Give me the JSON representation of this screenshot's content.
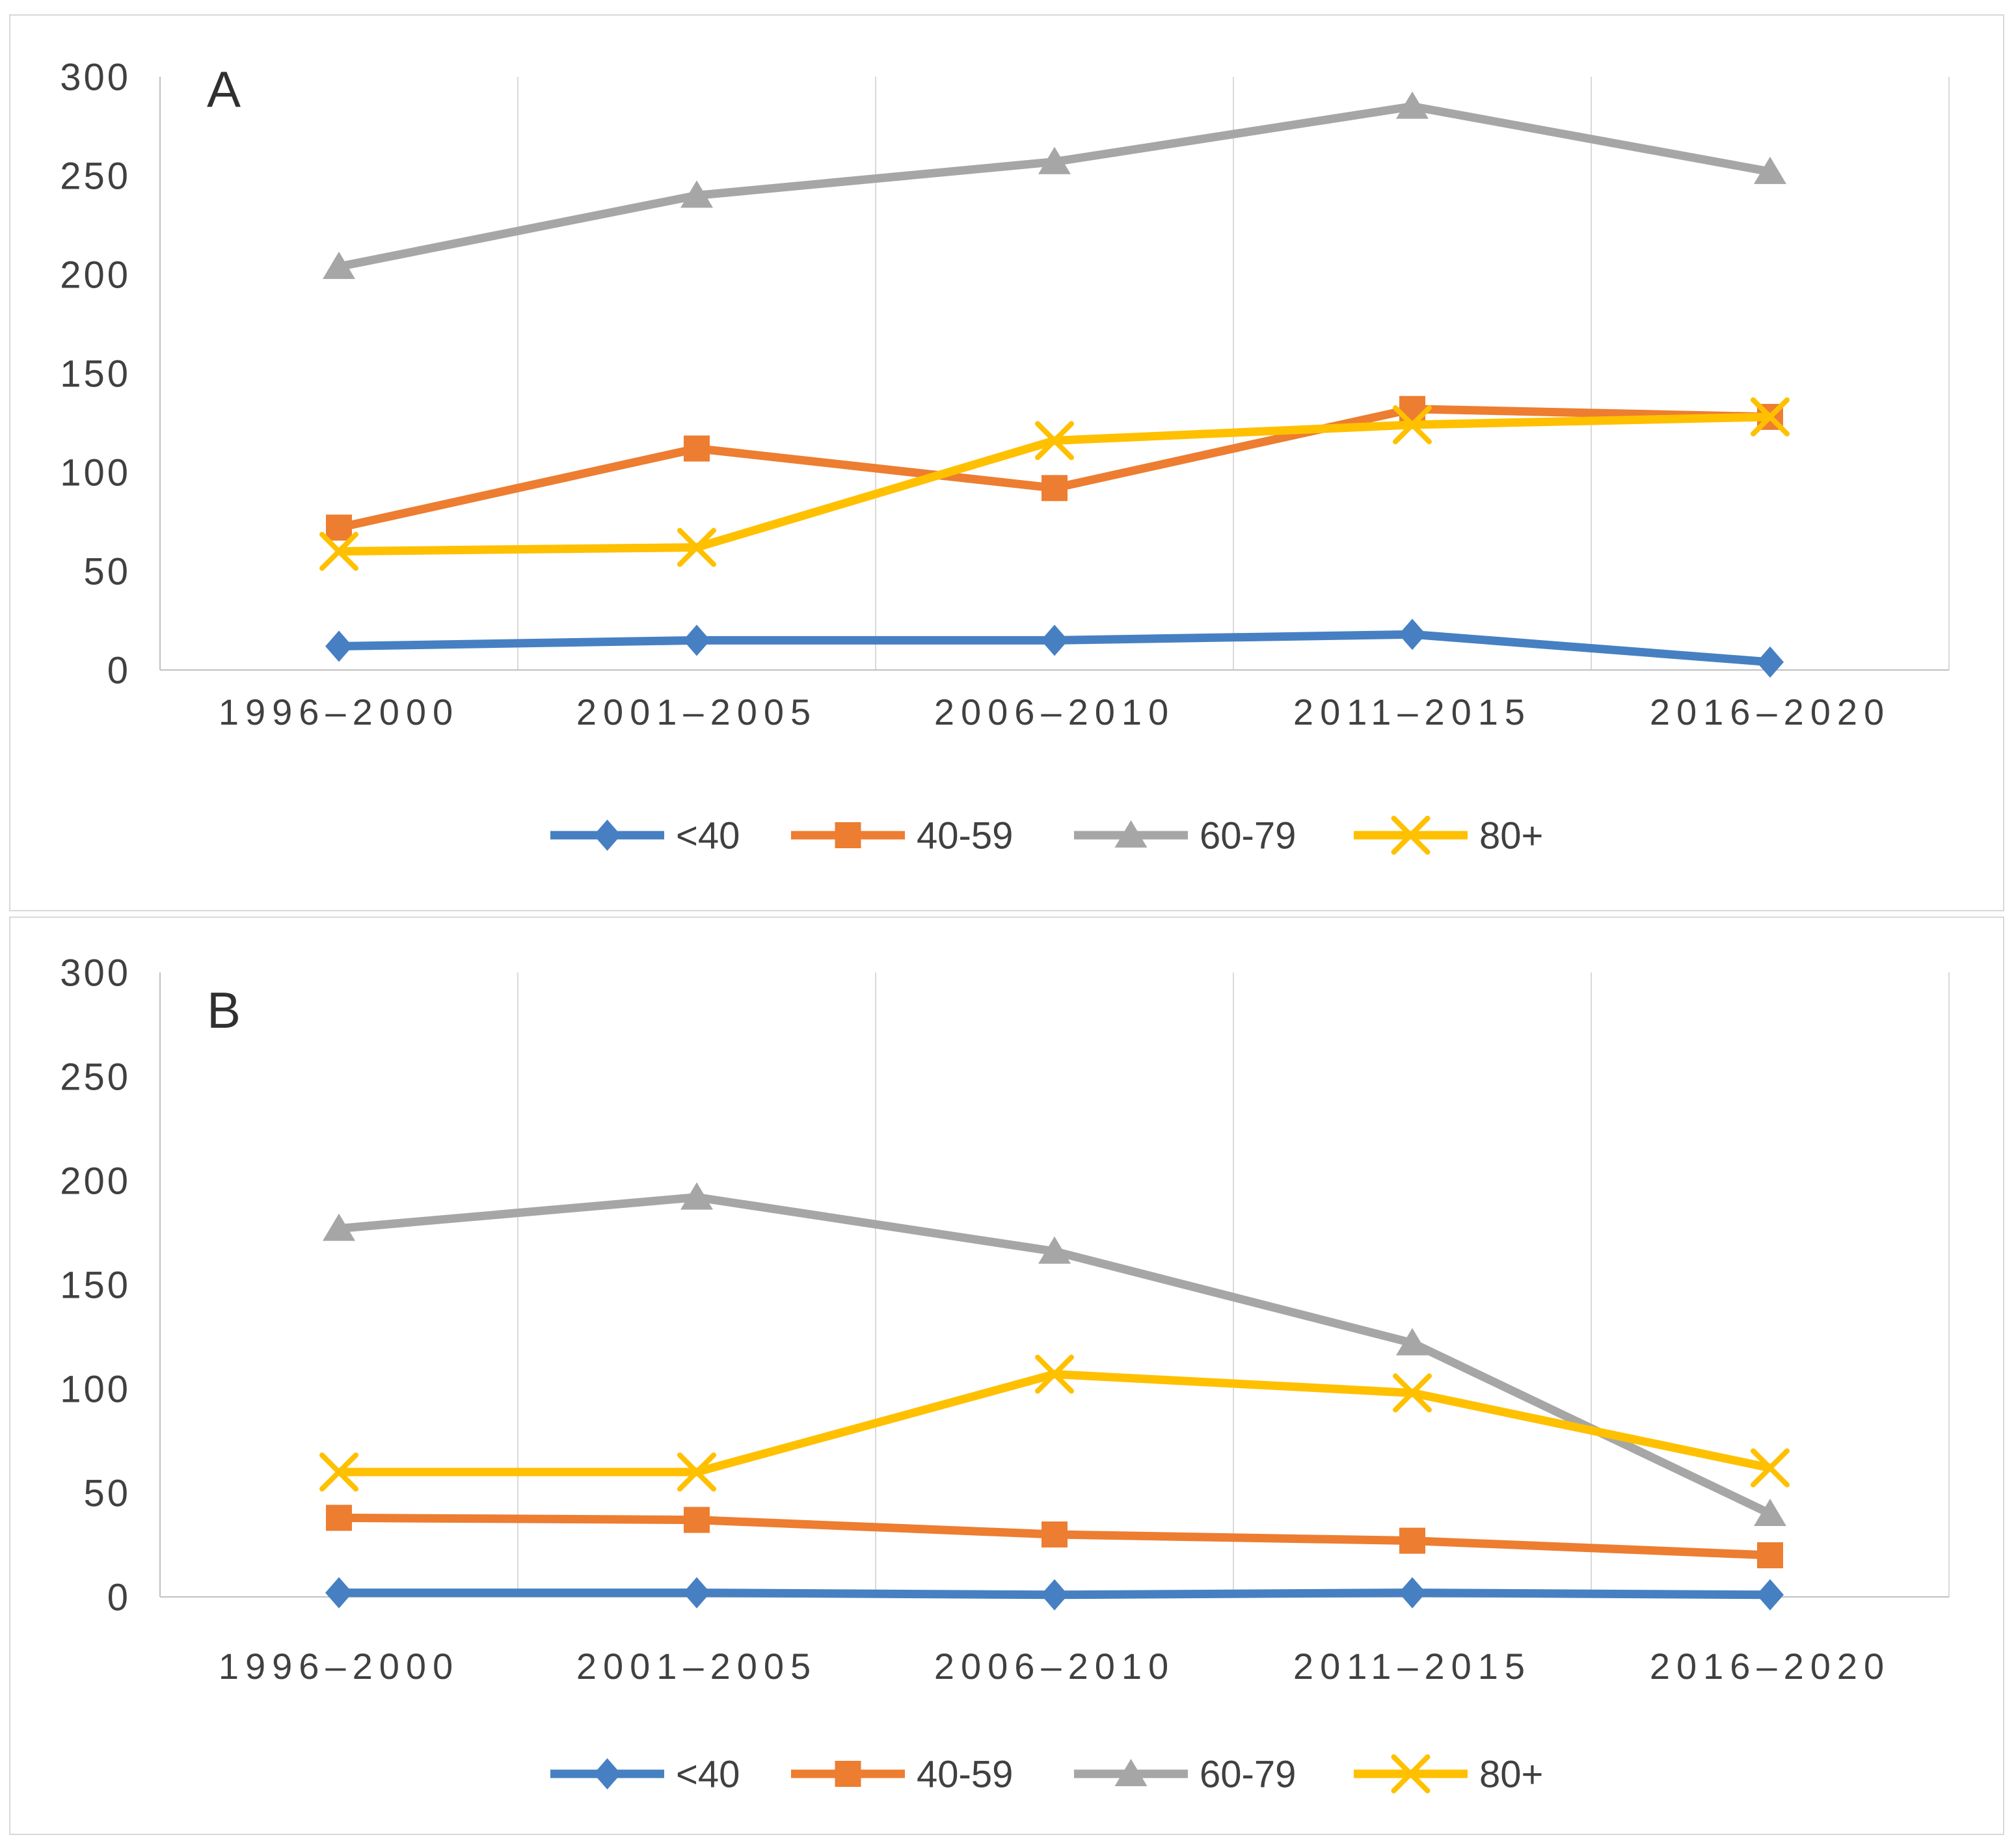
{
  "figure": {
    "background": "#ffffff",
    "panel_border_color": "#d8d8d8",
    "text_color": "#404040",
    "grid_color": "#d9d9d9",
    "axis_color": "#c0c0c0"
  },
  "chart_data": [
    {
      "id": "A",
      "type": "line",
      "panel_label": "A",
      "title": "",
      "xlabel": "",
      "ylabel": "",
      "categories": [
        "1996–2000",
        "2001–2005",
        "2006–2010",
        "2011–2015",
        "2016–2020"
      ],
      "ylim": [
        0,
        300
      ],
      "y_ticks": [
        0,
        50,
        100,
        150,
        200,
        250,
        300
      ],
      "grid": "vertical-only",
      "legend_position": "bottom",
      "series": [
        {
          "name": "<40",
          "marker": "diamond",
          "color": "#4680c2",
          "values": [
            12,
            15,
            15,
            18,
            4
          ]
        },
        {
          "name": "40-59",
          "marker": "square",
          "color": "#ed7d31",
          "values": [
            72,
            112,
            92,
            132,
            128
          ]
        },
        {
          "name": "60-79",
          "marker": "triangle",
          "color": "#a6a6a6",
          "values": [
            204,
            240,
            257,
            285,
            252
          ]
        },
        {
          "name": "80+",
          "marker": "x-cross",
          "color": "#ffc000",
          "values": [
            60,
            62,
            116,
            124,
            128
          ]
        }
      ]
    },
    {
      "id": "B",
      "type": "line",
      "panel_label": "B",
      "title": "",
      "xlabel": "",
      "ylabel": "",
      "categories": [
        "1996–2000",
        "2001–2005",
        "2006–2010",
        "2011–2015",
        "2016–2020"
      ],
      "ylim": [
        0,
        300
      ],
      "y_ticks": [
        0,
        50,
        100,
        150,
        200,
        250,
        300
      ],
      "grid": "vertical-only",
      "legend_position": "bottom",
      "series": [
        {
          "name": "<40",
          "marker": "diamond",
          "color": "#4680c2",
          "values": [
            2,
            2,
            1,
            2,
            1
          ]
        },
        {
          "name": "40-59",
          "marker": "square",
          "color": "#ed7d31",
          "values": [
            38,
            37,
            30,
            27,
            20
          ]
        },
        {
          "name": "60-79",
          "marker": "triangle",
          "color": "#a6a6a6",
          "values": [
            177,
            192,
            166,
            122,
            40
          ]
        },
        {
          "name": "80+",
          "marker": "x-cross",
          "color": "#ffc000",
          "values": [
            60,
            60,
            107,
            98,
            62
          ]
        }
      ]
    }
  ]
}
